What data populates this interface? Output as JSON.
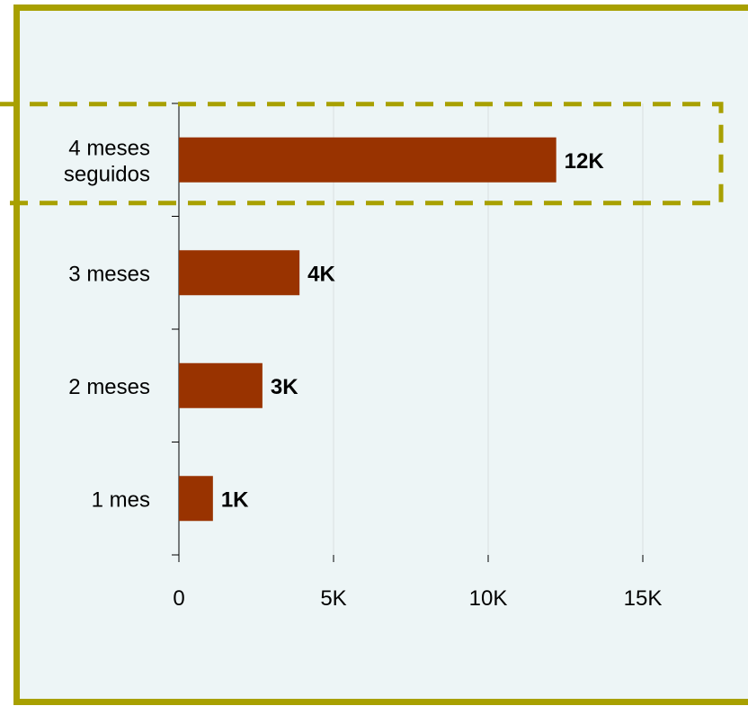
{
  "chart_data": {
    "type": "bar",
    "orientation": "horizontal",
    "categories": [
      "1 mes",
      "2 meses",
      "3 meses",
      "4 meses seguidos"
    ],
    "category_lines": [
      [
        "1 mes"
      ],
      [
        "2 meses"
      ],
      [
        "3 meses"
      ],
      [
        "4 meses",
        "seguidos"
      ]
    ],
    "values": [
      1100,
      2700,
      3900,
      12200
    ],
    "data_labels": [
      "1K",
      "3K",
      "4K",
      "12K"
    ],
    "xlim": [
      0,
      15000
    ],
    "x_ticks": [
      0,
      5000,
      10000,
      15000
    ],
    "x_tick_labels": [
      "0",
      "5K",
      "10K",
      "15K"
    ],
    "title": "",
    "xlabel": "",
    "ylabel": "",
    "grid": "vertical",
    "highlighted_category": "4 meses seguidos",
    "colors": {
      "bar": "#993300",
      "frame": "#a8a000",
      "highlight_box": "#a8a000",
      "background": "#edf5f6",
      "grid": "#d9dfe0"
    }
  }
}
